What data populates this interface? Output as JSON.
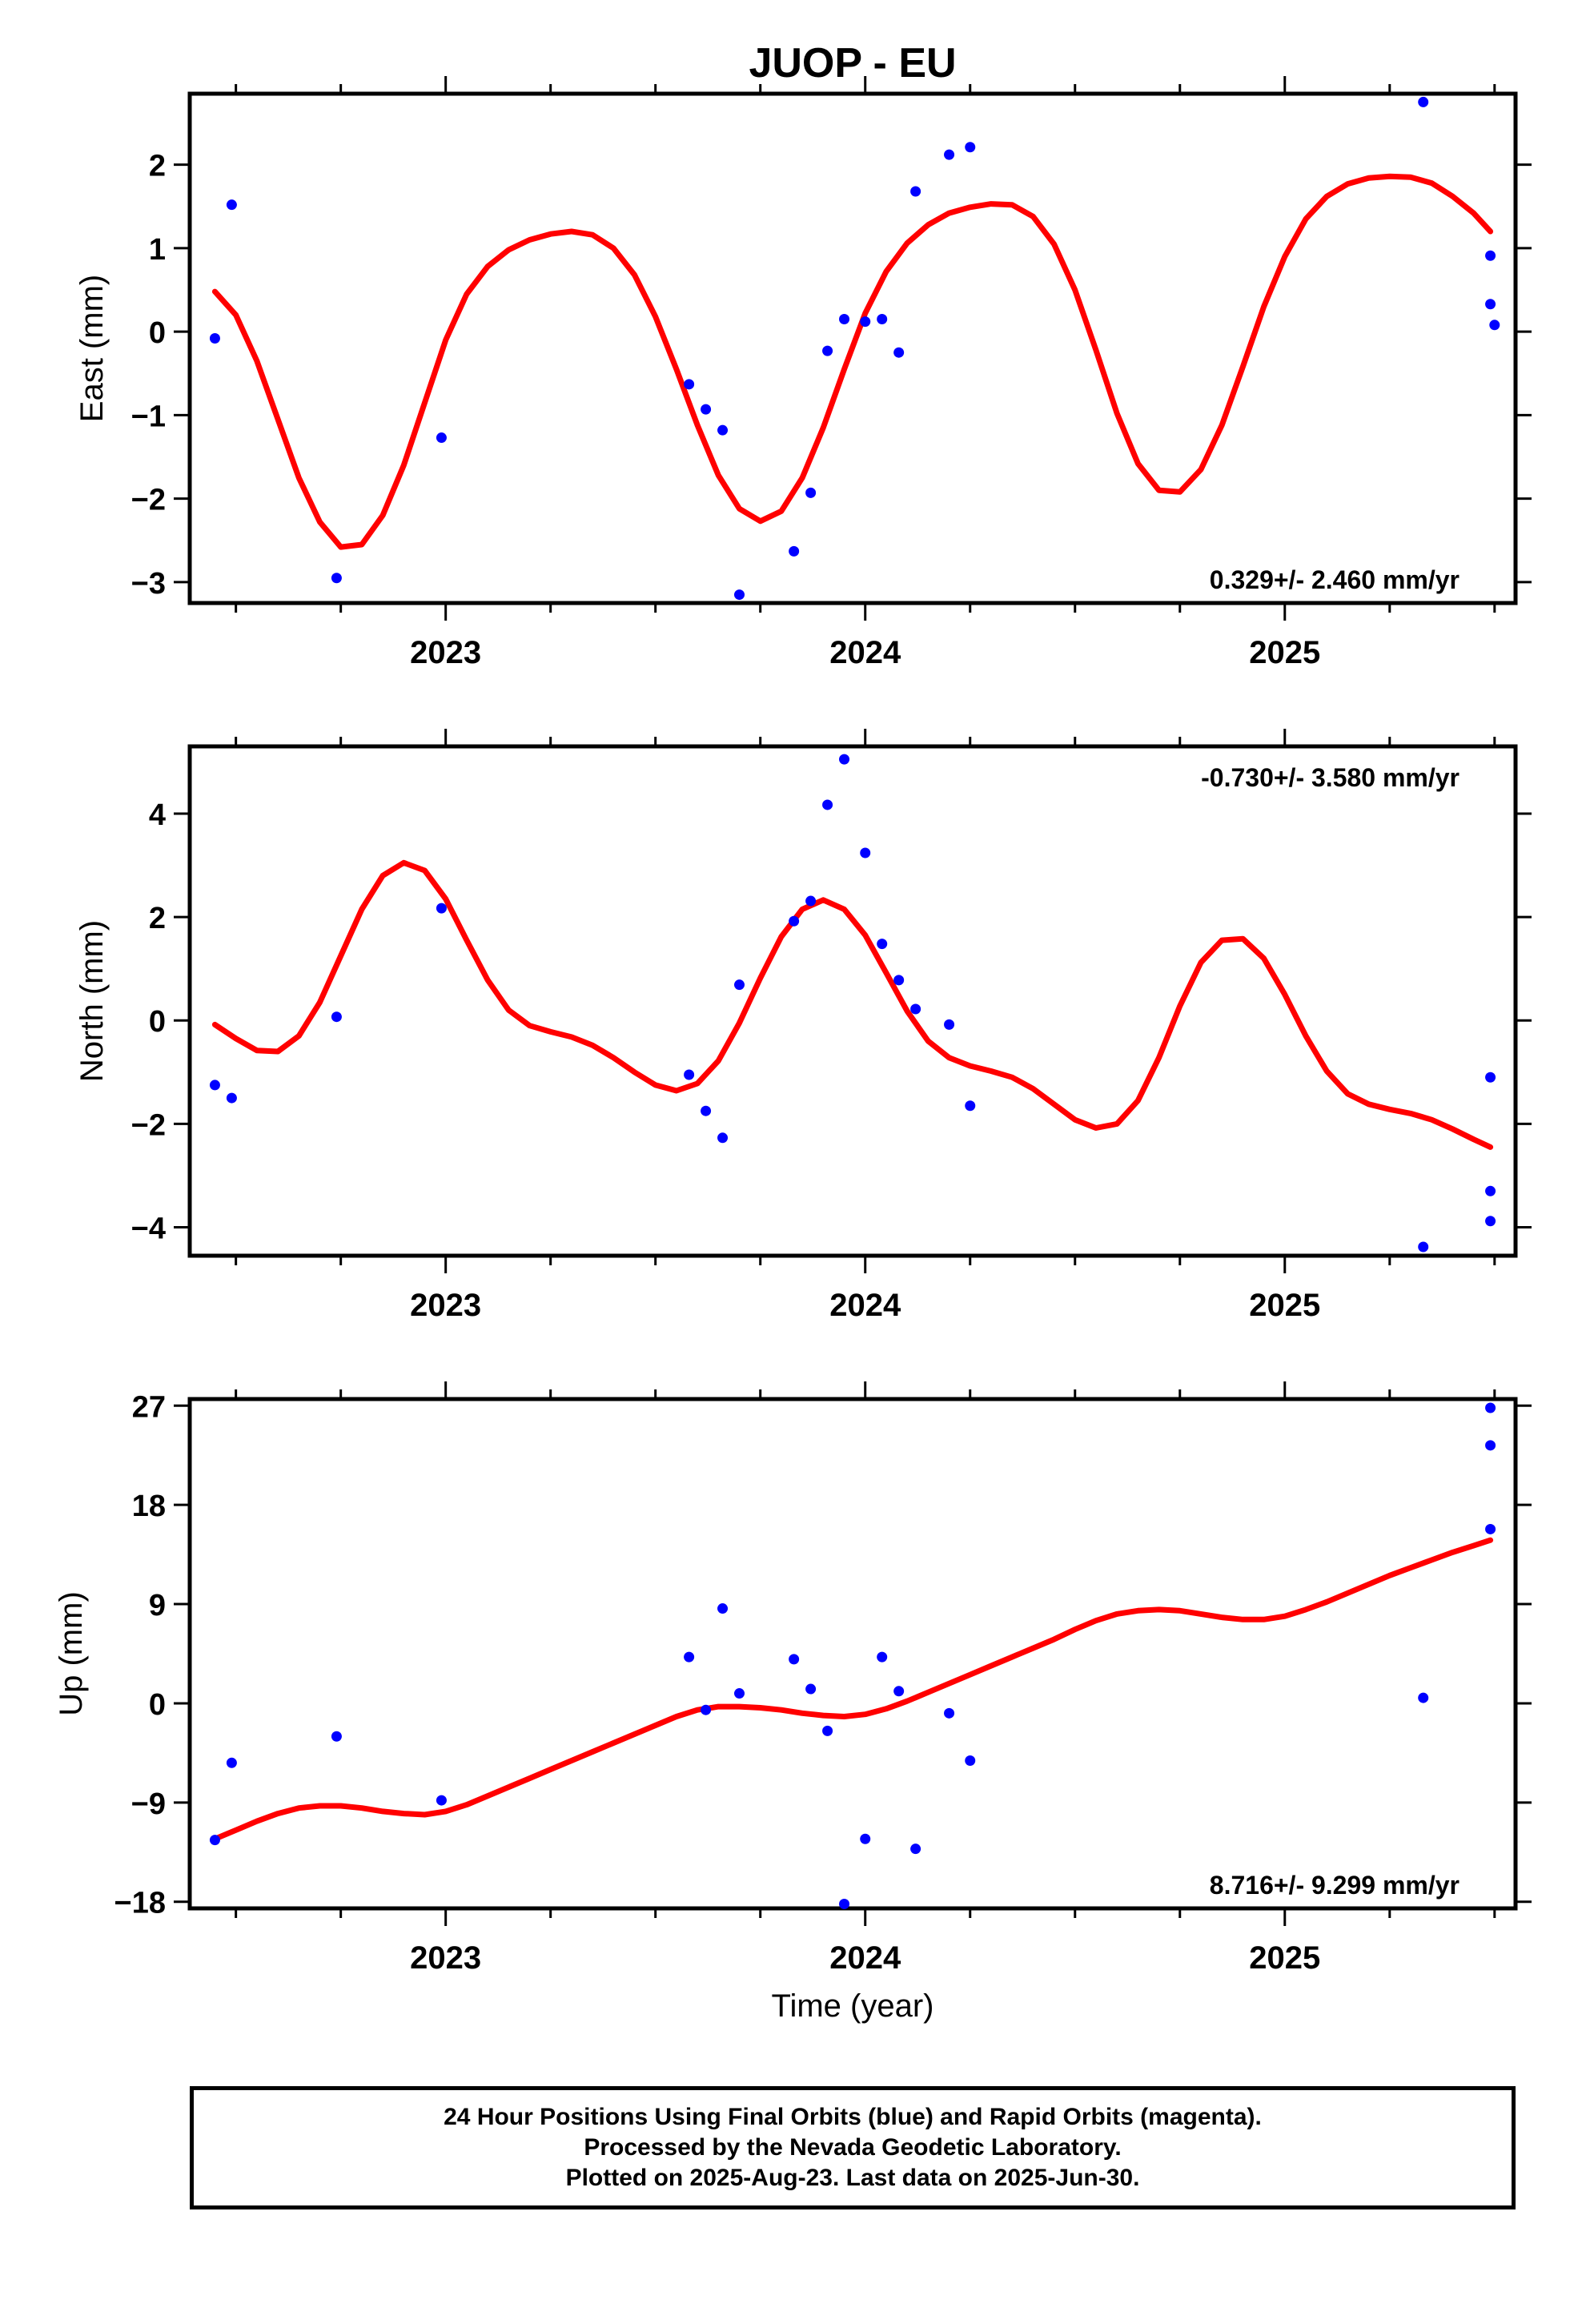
{
  "title": "JUOP - EU",
  "colors": {
    "data": "#0000ff",
    "fit": "#ff0000",
    "frame": "#000000"
  },
  "chart_data": [
    {
      "type": "scatter",
      "ylabel": "East (mm)",
      "xlabel": "",
      "xlim": [
        2022.39,
        2025.55
      ],
      "ylim": [
        -3.25,
        2.85
      ],
      "yticks": [
        2,
        1,
        0,
        -1,
        -2,
        -3
      ],
      "xticks": [
        2023,
        2024,
        2025
      ],
      "rate_text": "0.329+/- 2.460 mm/yr",
      "rate_position": "bottom-right",
      "points": [
        [
          2022.45,
          -0.08
        ],
        [
          2022.49,
          1.52
        ],
        [
          2022.74,
          -2.95
        ],
        [
          2022.99,
          -1.27
        ],
        [
          2023.58,
          -0.63
        ],
        [
          2023.62,
          -0.93
        ],
        [
          2023.66,
          -1.18
        ],
        [
          2023.7,
          -3.15
        ],
        [
          2023.83,
          -2.63
        ],
        [
          2023.87,
          -1.93
        ],
        [
          2023.91,
          -0.23
        ],
        [
          2023.95,
          0.15
        ],
        [
          2024.0,
          0.12
        ],
        [
          2024.04,
          0.15
        ],
        [
          2024.08,
          -0.25
        ],
        [
          2024.12,
          1.68
        ],
        [
          2024.2,
          2.12
        ],
        [
          2024.25,
          2.21
        ],
        [
          2025.33,
          2.75
        ],
        [
          2025.49,
          0.91
        ],
        [
          2025.49,
          0.33
        ],
        [
          2025.5,
          0.08
        ]
      ],
      "fit": [
        [
          2022.45,
          0.48
        ],
        [
          2022.5,
          0.2
        ],
        [
          2022.55,
          -0.35
        ],
        [
          2022.6,
          -1.05
        ],
        [
          2022.65,
          -1.75
        ],
        [
          2022.7,
          -2.28
        ],
        [
          2022.75,
          -2.58
        ],
        [
          2022.8,
          -2.55
        ],
        [
          2022.85,
          -2.2
        ],
        [
          2022.9,
          -1.6
        ],
        [
          2022.95,
          -0.85
        ],
        [
          2023.0,
          -0.1
        ],
        [
          2023.05,
          0.45
        ],
        [
          2023.1,
          0.78
        ],
        [
          2023.15,
          0.98
        ],
        [
          2023.2,
          1.1
        ],
        [
          2023.25,
          1.17
        ],
        [
          2023.3,
          1.2
        ],
        [
          2023.35,
          1.16
        ],
        [
          2023.4,
          1.0
        ],
        [
          2023.45,
          0.68
        ],
        [
          2023.5,
          0.18
        ],
        [
          2023.55,
          -0.45
        ],
        [
          2023.6,
          -1.12
        ],
        [
          2023.65,
          -1.72
        ],
        [
          2023.7,
          -2.12
        ],
        [
          2023.75,
          -2.27
        ],
        [
          2023.8,
          -2.15
        ],
        [
          2023.85,
          -1.75
        ],
        [
          2023.9,
          -1.15
        ],
        [
          2023.95,
          -0.45
        ],
        [
          2024.0,
          0.22
        ],
        [
          2024.05,
          0.72
        ],
        [
          2024.1,
          1.06
        ],
        [
          2024.15,
          1.28
        ],
        [
          2024.2,
          1.42
        ],
        [
          2024.25,
          1.49
        ],
        [
          2024.3,
          1.53
        ],
        [
          2024.35,
          1.52
        ],
        [
          2024.4,
          1.38
        ],
        [
          2024.45,
          1.05
        ],
        [
          2024.5,
          0.5
        ],
        [
          2024.55,
          -0.22
        ],
        [
          2024.6,
          -0.98
        ],
        [
          2024.65,
          -1.58
        ],
        [
          2024.7,
          -1.9
        ],
        [
          2024.75,
          -1.92
        ],
        [
          2024.8,
          -1.65
        ],
        [
          2024.85,
          -1.12
        ],
        [
          2024.9,
          -0.42
        ],
        [
          2024.95,
          0.3
        ],
        [
          2025.0,
          0.9
        ],
        [
          2025.05,
          1.35
        ],
        [
          2025.1,
          1.62
        ],
        [
          2025.15,
          1.77
        ],
        [
          2025.2,
          1.84
        ],
        [
          2025.25,
          1.86
        ],
        [
          2025.3,
          1.85
        ],
        [
          2025.35,
          1.78
        ],
        [
          2025.4,
          1.62
        ],
        [
          2025.45,
          1.42
        ],
        [
          2025.49,
          1.2
        ]
      ]
    },
    {
      "type": "scatter",
      "ylabel": "North (mm)",
      "xlabel": "",
      "xlim": [
        2022.39,
        2025.55
      ],
      "ylim": [
        -4.55,
        5.3
      ],
      "yticks": [
        4,
        2,
        0,
        -2,
        -4
      ],
      "xticks": [
        2023,
        2024,
        2025
      ],
      "rate_text": "-0.730+/- 3.580 mm/yr",
      "rate_position": "top-right",
      "points": [
        [
          2022.45,
          -1.25
        ],
        [
          2022.49,
          -1.5
        ],
        [
          2022.74,
          0.07
        ],
        [
          2022.99,
          2.17
        ],
        [
          2023.58,
          -1.05
        ],
        [
          2023.62,
          -1.75
        ],
        [
          2023.66,
          -2.27
        ],
        [
          2023.7,
          0.69
        ],
        [
          2023.83,
          1.92
        ],
        [
          2023.87,
          2.31
        ],
        [
          2023.91,
          4.17
        ],
        [
          2023.95,
          5.05
        ],
        [
          2024.0,
          3.24
        ],
        [
          2024.04,
          1.48
        ],
        [
          2024.08,
          0.78
        ],
        [
          2024.12,
          0.22
        ],
        [
          2024.2,
          -0.08
        ],
        [
          2024.25,
          -1.65
        ],
        [
          2025.33,
          -4.38
        ],
        [
          2025.49,
          -1.1
        ],
        [
          2025.49,
          -3.3
        ],
        [
          2025.49,
          -3.88
        ]
      ],
      "fit": [
        [
          2022.45,
          -0.08
        ],
        [
          2022.5,
          -0.35
        ],
        [
          2022.55,
          -0.58
        ],
        [
          2022.6,
          -0.6
        ],
        [
          2022.65,
          -0.3
        ],
        [
          2022.7,
          0.35
        ],
        [
          2022.75,
          1.25
        ],
        [
          2022.8,
          2.15
        ],
        [
          2022.85,
          2.8
        ],
        [
          2022.9,
          3.05
        ],
        [
          2022.95,
          2.9
        ],
        [
          2023.0,
          2.35
        ],
        [
          2023.05,
          1.55
        ],
        [
          2023.1,
          0.78
        ],
        [
          2023.15,
          0.2
        ],
        [
          2023.2,
          -0.1
        ],
        [
          2023.25,
          -0.22
        ],
        [
          2023.3,
          -0.32
        ],
        [
          2023.35,
          -0.48
        ],
        [
          2023.4,
          -0.72
        ],
        [
          2023.45,
          -1.0
        ],
        [
          2023.5,
          -1.25
        ],
        [
          2023.55,
          -1.36
        ],
        [
          2023.6,
          -1.22
        ],
        [
          2023.65,
          -0.78
        ],
        [
          2023.7,
          -0.05
        ],
        [
          2023.75,
          0.82
        ],
        [
          2023.8,
          1.62
        ],
        [
          2023.85,
          2.15
        ],
        [
          2023.9,
          2.33
        ],
        [
          2023.95,
          2.15
        ],
        [
          2024.0,
          1.65
        ],
        [
          2024.05,
          0.92
        ],
        [
          2024.1,
          0.18
        ],
        [
          2024.15,
          -0.4
        ],
        [
          2024.2,
          -0.72
        ],
        [
          2024.25,
          -0.88
        ],
        [
          2024.3,
          -0.98
        ],
        [
          2024.35,
          -1.1
        ],
        [
          2024.4,
          -1.32
        ],
        [
          2024.45,
          -1.62
        ],
        [
          2024.5,
          -1.92
        ],
        [
          2024.55,
          -2.08
        ],
        [
          2024.6,
          -2.0
        ],
        [
          2024.65,
          -1.55
        ],
        [
          2024.7,
          -0.72
        ],
        [
          2024.75,
          0.28
        ],
        [
          2024.8,
          1.12
        ],
        [
          2024.85,
          1.55
        ],
        [
          2024.9,
          1.58
        ],
        [
          2024.95,
          1.2
        ],
        [
          2025.0,
          0.5
        ],
        [
          2025.05,
          -0.3
        ],
        [
          2025.1,
          -0.98
        ],
        [
          2025.15,
          -1.42
        ],
        [
          2025.2,
          -1.62
        ],
        [
          2025.25,
          -1.72
        ],
        [
          2025.3,
          -1.8
        ],
        [
          2025.35,
          -1.92
        ],
        [
          2025.4,
          -2.1
        ],
        [
          2025.45,
          -2.3
        ],
        [
          2025.49,
          -2.45
        ]
      ]
    },
    {
      "type": "scatter",
      "ylabel": "Up (mm)",
      "xlabel": "Time (year)",
      "xlim": [
        2022.39,
        2025.55
      ],
      "ylim": [
        -18.6,
        27.6
      ],
      "yticks": [
        27,
        18,
        9,
        0,
        -9,
        -18
      ],
      "xticks": [
        2023,
        2024,
        2025
      ],
      "rate_text": "8.716+/- 9.299 mm/yr",
      "rate_position": "bottom-right",
      "points": [
        [
          2022.45,
          -12.4
        ],
        [
          2022.49,
          -5.4
        ],
        [
          2022.74,
          -3.0
        ],
        [
          2022.99,
          -8.8
        ],
        [
          2023.58,
          4.2
        ],
        [
          2023.62,
          -0.6
        ],
        [
          2023.66,
          8.6
        ],
        [
          2023.7,
          0.9
        ],
        [
          2023.83,
          4.0
        ],
        [
          2023.87,
          1.3
        ],
        [
          2023.91,
          -2.5
        ],
        [
          2023.95,
          -18.2
        ],
        [
          2024.0,
          -12.3
        ],
        [
          2024.04,
          4.2
        ],
        [
          2024.08,
          1.1
        ],
        [
          2024.12,
          -13.2
        ],
        [
          2024.2,
          -0.9
        ],
        [
          2024.25,
          -5.2
        ],
        [
          2025.33,
          0.5
        ],
        [
          2025.49,
          26.8
        ],
        [
          2025.49,
          23.4
        ],
        [
          2025.49,
          15.8
        ]
      ],
      "fit": [
        [
          2022.45,
          -12.3
        ],
        [
          2022.5,
          -11.5
        ],
        [
          2022.55,
          -10.7
        ],
        [
          2022.6,
          -10.0
        ],
        [
          2022.65,
          -9.5
        ],
        [
          2022.7,
          -9.3
        ],
        [
          2022.75,
          -9.3
        ],
        [
          2022.8,
          -9.5
        ],
        [
          2022.85,
          -9.8
        ],
        [
          2022.9,
          -10.0
        ],
        [
          2022.95,
          -10.1
        ],
        [
          2023.0,
          -9.8
        ],
        [
          2023.05,
          -9.2
        ],
        [
          2023.1,
          -8.4
        ],
        [
          2023.15,
          -7.6
        ],
        [
          2023.2,
          -6.8
        ],
        [
          2023.25,
          -6.0
        ],
        [
          2023.3,
          -5.2
        ],
        [
          2023.35,
          -4.4
        ],
        [
          2023.4,
          -3.6
        ],
        [
          2023.45,
          -2.8
        ],
        [
          2023.5,
          -2.0
        ],
        [
          2023.55,
          -1.2
        ],
        [
          2023.6,
          -0.6
        ],
        [
          2023.65,
          -0.3
        ],
        [
          2023.7,
          -0.3
        ],
        [
          2023.75,
          -0.4
        ],
        [
          2023.8,
          -0.6
        ],
        [
          2023.85,
          -0.9
        ],
        [
          2023.9,
          -1.1
        ],
        [
          2023.95,
          -1.2
        ],
        [
          2024.0,
          -1.0
        ],
        [
          2024.05,
          -0.5
        ],
        [
          2024.1,
          0.2
        ],
        [
          2024.15,
          1.0
        ],
        [
          2024.2,
          1.8
        ],
        [
          2024.25,
          2.6
        ],
        [
          2024.3,
          3.4
        ],
        [
          2024.35,
          4.2
        ],
        [
          2024.4,
          5.0
        ],
        [
          2024.45,
          5.8
        ],
        [
          2024.5,
          6.7
        ],
        [
          2024.55,
          7.5
        ],
        [
          2024.6,
          8.1
        ],
        [
          2024.65,
          8.4
        ],
        [
          2024.7,
          8.5
        ],
        [
          2024.75,
          8.4
        ],
        [
          2024.8,
          8.1
        ],
        [
          2024.85,
          7.8
        ],
        [
          2024.9,
          7.6
        ],
        [
          2024.95,
          7.6
        ],
        [
          2025.0,
          7.9
        ],
        [
          2025.05,
          8.5
        ],
        [
          2025.1,
          9.2
        ],
        [
          2025.15,
          10.0
        ],
        [
          2025.2,
          10.8
        ],
        [
          2025.25,
          11.6
        ],
        [
          2025.3,
          12.3
        ],
        [
          2025.35,
          13.0
        ],
        [
          2025.4,
          13.7
        ],
        [
          2025.45,
          14.3
        ],
        [
          2025.49,
          14.8
        ]
      ]
    }
  ],
  "footer": {
    "line1": "24 Hour Positions Using Final Orbits (blue) and Rapid Orbits (magenta).",
    "line2": "Processed by the Nevada Geodetic Laboratory.",
    "line3": "Plotted on 2025-Aug-23. Last data on 2025-Jun-30."
  }
}
